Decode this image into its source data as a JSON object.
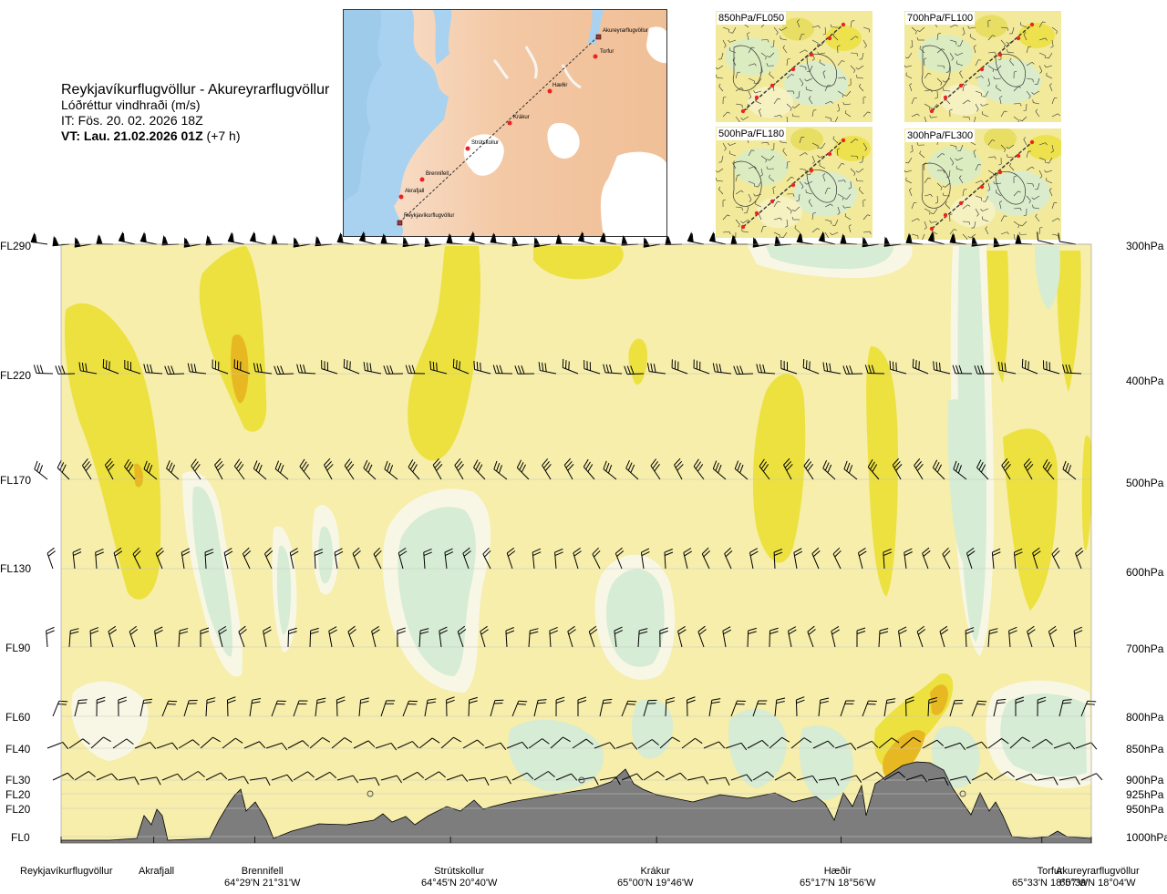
{
  "header": {
    "route": "Reykjavíkurflugvöllur - Akureyrarflugvöllur",
    "quantity": "Lóðréttur vindhraði (m/s)",
    "issue_time": "IT: Fös. 20. 02. 2026 18Z",
    "valid_time": "VT: Lau. 21.02.2026 01Z",
    "valid_offset": "(+7 h)"
  },
  "route_map": {
    "waypoints": [
      {
        "name": "Akureyrarflugvöllur"
      },
      {
        "name": "Torfur"
      },
      {
        "name": "Hæðir"
      },
      {
        "name": "Krákur"
      },
      {
        "name": "Strútskollur"
      },
      {
        "name": "Brennifell"
      },
      {
        "name": "Akrafjall"
      },
      {
        "name": "Reykjavíkurflugvöllur"
      }
    ]
  },
  "mini_maps": [
    {
      "label": "850hPa/FL050"
    },
    {
      "label": "700hPa/FL100"
    },
    {
      "label": "500hPa/FL180"
    },
    {
      "label": "300hPa/FL300"
    }
  ],
  "colors": {
    "background_field": "#f6eeaa",
    "updraft_weak": "#ece13f",
    "updraft_strong": "#e8b822",
    "downdraft_weak": "#d6ecd4",
    "downdraft_edge": "#f8f7e6",
    "terrain": "#7d7d7d"
  },
  "chart_data": {
    "type": "heatmap",
    "title": "Lóðréttur vindhraði (m/s)",
    "x_axis": "route",
    "locations": [
      {
        "name": "Reykjavíkurflugvöllur",
        "coord": "",
        "position": 0.0
      },
      {
        "name": "Akrafjall",
        "coord": "",
        "position": 0.09
      },
      {
        "name": "Brennifell",
        "coord": "64°29'N 21°31'W",
        "position": 0.188
      },
      {
        "name": "Strútskollur",
        "coord": "64°45'N 20°40'W",
        "position": 0.378
      },
      {
        "name": "Krákur",
        "coord": "65°00'N 19°46'W",
        "position": 0.578
      },
      {
        "name": "Hæðir",
        "coord": "65°17'N 18°56'W",
        "position": 0.757
      },
      {
        "name": "Torfur",
        "coord": "65°33'N 18°07'W",
        "position": 0.952
      },
      {
        "name": "Akureyrarflugvöllur",
        "coord": "65°39'N 18°04'W",
        "position": 1.0
      }
    ],
    "levels": [
      {
        "fl": "FL290",
        "hpa": "300hPa",
        "p": 300
      },
      {
        "fl": "FL220",
        "hpa": "400hPa",
        "p": 400
      },
      {
        "fl": "FL170",
        "hpa": "500hPa",
        "p": 500
      },
      {
        "fl": "FL130",
        "hpa": "600hPa",
        "p": 600
      },
      {
        "fl": "FL90",
        "hpa": "700hPa",
        "p": 700
      },
      {
        "fl": "FL60",
        "hpa": "800hPa",
        "p": 800
      },
      {
        "fl": "FL40",
        "hpa": "850hPa",
        "p": 850
      },
      {
        "fl": "FL30",
        "hpa": "900hPa",
        "p": 900
      },
      {
        "fl": "FL20",
        "hpa": "925hPa",
        "p": 925
      },
      {
        "fl": "FL20",
        "hpa": "950hPa",
        "p": 950
      },
      {
        "fl": "FL0",
        "hpa": "1000hPa",
        "p": 1000
      }
    ],
    "y_axis_range_hpa": [
      300,
      1000
    ],
    "grid": true,
    "legend": "none"
  }
}
